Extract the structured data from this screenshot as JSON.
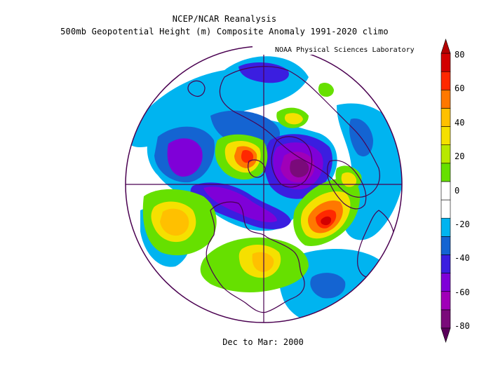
{
  "title": {
    "line1": "NCEP/NCAR Reanalysis",
    "line2": "500mb Geopotential Height (m) Composite Anomaly 1991-2020 climo"
  },
  "credit": "NOAA Physical Sciences Laboratory",
  "footer": "Dec to Mar: 2000",
  "colorbar": {
    "ticks": [
      "80",
      "60",
      "40",
      "20",
      "0",
      "-20",
      "-40",
      "-60",
      "-80"
    ],
    "colors": [
      "#7a0a7a",
      "#a000b8",
      "#7f00d8",
      "#3b1ee0",
      "#1464d2",
      "#00b4f0",
      "#ffffff",
      "#ffffff",
      "#66e000",
      "#b8e800",
      "#f5e000",
      "#ffc000",
      "#ff7800",
      "#ff2800",
      "#d20000"
    ]
  },
  "map": {
    "projection": "north polar stereographic",
    "variable": "500mb geopotential height anomaly",
    "units": "m",
    "anomaly_centers": [
      {
        "region": "Central Pacific",
        "sign": "positive",
        "approx_value_m": 50
      },
      {
        "region": "Western North Atlantic",
        "sign": "positive",
        "approx_value_m": 70
      },
      {
        "region": "Arctic / Baffin Bay",
        "sign": "positive",
        "approx_value_m": 60
      },
      {
        "region": "Eastern Europe / Scandinavia",
        "sign": "positive",
        "approx_value_m": 40
      },
      {
        "region": "Siberia",
        "sign": "negative",
        "approx_value_m": -75
      },
      {
        "region": "Kara / Barents Sea",
        "sign": "negative",
        "approx_value_m": -60
      },
      {
        "region": "Alaska / Bering",
        "sign": "negative",
        "approx_value_m": -70
      },
      {
        "region": "Labrador Sea",
        "sign": "negative",
        "approx_value_m": -60
      },
      {
        "region": "Subtropical Atlantic",
        "sign": "negative",
        "approx_value_m": -30
      }
    ]
  }
}
